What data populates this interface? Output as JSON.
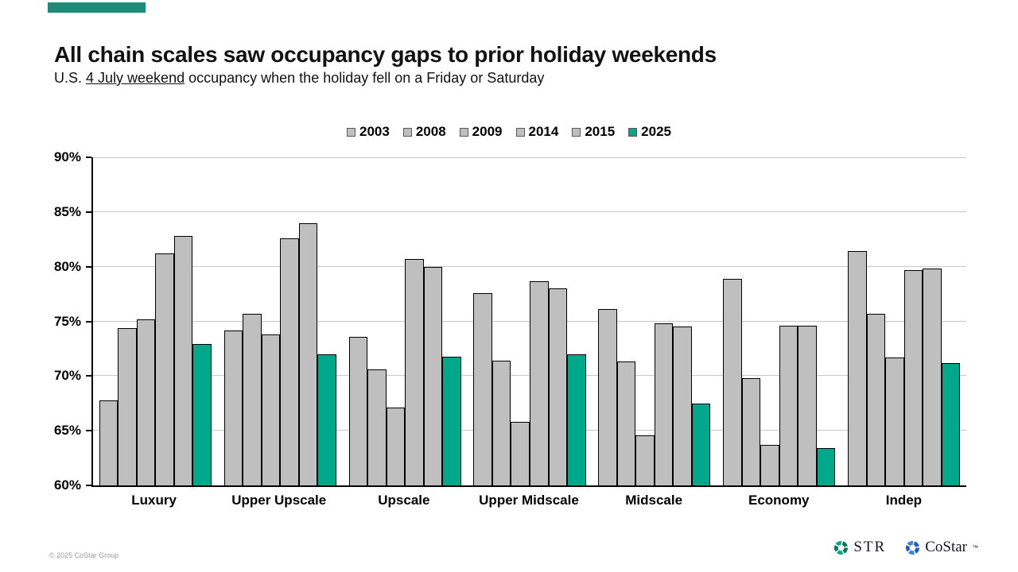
{
  "slide": {
    "title": "All chain scales saw occupancy gaps to prior holiday weekends",
    "subtitle_prefix": "U.S. ",
    "subtitle_underline": "4 July weekend",
    "subtitle_suffix": " occupancy when the holiday fell on a Friday or Saturday",
    "footer_copyright": "© 2025 CoStar Group",
    "logos": {
      "str_label": "STR",
      "costar_label": "CoStar",
      "costar_tm": "™"
    }
  },
  "colors": {
    "accent_teal": "#1e8a7a",
    "bar_gray": "#bfbfbf",
    "bar_teal": "#00a88b",
    "bar_border": "#000000",
    "gridline": "#c7c7c7",
    "str_logo_green_dark": "#00795c",
    "str_logo_green_light": "#00a88b",
    "costar_logo_blue_dark": "#1b5ec7",
    "costar_logo_blue_light": "#3a82e0"
  },
  "chart_data": {
    "type": "bar",
    "title": "All chain scales saw occupancy gaps to prior holiday weekends",
    "subtitle": "U.S. 4 July weekend occupancy when the holiday fell on a Friday or Saturday",
    "categories": [
      "Luxury",
      "Upper Upscale",
      "Upscale",
      "Upper Midscale",
      "Midscale",
      "Economy",
      "Indep"
    ],
    "series": [
      {
        "name": "2003",
        "color": "#bfbfbf",
        "values": [
          67.8,
          74.2,
          73.6,
          77.6,
          76.1,
          78.9,
          81.4
        ]
      },
      {
        "name": "2008",
        "color": "#bfbfbf",
        "values": [
          74.4,
          75.7,
          70.6,
          71.4,
          71.3,
          69.8,
          75.7
        ]
      },
      {
        "name": "2009",
        "color": "#bfbfbf",
        "values": [
          75.2,
          73.8,
          67.1,
          65.8,
          64.6,
          63.7,
          71.7
        ]
      },
      {
        "name": "2014",
        "color": "#bfbfbf",
        "values": [
          81.2,
          82.6,
          80.7,
          78.7,
          74.8,
          74.6,
          79.7
        ]
      },
      {
        "name": "2015",
        "color": "#bfbfbf",
        "values": [
          82.8,
          84.0,
          80.0,
          78.0,
          74.5,
          74.6,
          79.8
        ]
      },
      {
        "name": "2025",
        "color": "#00a88b",
        "values": [
          72.9,
          72.0,
          71.8,
          72.0,
          67.5,
          63.4,
          71.2
        ]
      }
    ],
    "ylim": [
      60,
      90
    ],
    "y_ticks": [
      {
        "value": 90,
        "label": "90%"
      },
      {
        "value": 85,
        "label": "85%"
      },
      {
        "value": 80,
        "label": "80%"
      },
      {
        "value": 75,
        "label": "75%"
      },
      {
        "value": 70,
        "label": "70%"
      },
      {
        "value": 65,
        "label": "65%"
      },
      {
        "value": 60,
        "label": "60%"
      }
    ],
    "grid": true,
    "legend_position": "top-center",
    "xlabel": "",
    "ylabel": ""
  }
}
